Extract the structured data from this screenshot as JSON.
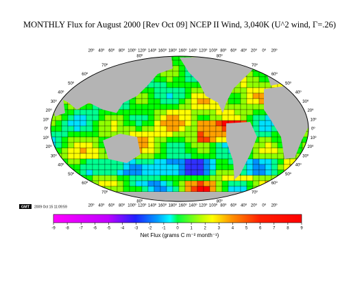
{
  "title": "MONTHLY Flux for August 2000 [Rev Oct 09] NCEP II Wind, 3,040K (U^2 wind, Γ=.26)",
  "map": {
    "top_lon_labels": [
      "20º",
      "40º",
      "60º",
      "80º",
      "100º",
      "120º",
      "140º",
      "160º",
      "180º",
      "160º",
      "140º",
      "120º",
      "100º",
      "80º",
      "60º",
      "40º",
      "20º",
      "0º",
      "20º"
    ],
    "bottom_lon_labels": [
      "20º",
      "40º",
      "60º",
      "80º",
      "100º",
      "120º",
      "140º",
      "160º",
      "180º",
      "160º",
      "140º",
      "120º",
      "100º",
      "80º",
      "60º",
      "40º",
      "20º",
      "0º",
      "20º"
    ],
    "left_lat_labels": [
      "80º",
      "70º",
      "60º",
      "50º",
      "40º",
      "30º",
      "20º",
      "10º",
      "0º",
      "10º",
      "20º",
      "30º",
      "40º",
      "50º",
      "60º",
      "70º",
      "80º"
    ],
    "right_lat_labels": [
      "80º",
      "70º",
      "60º",
      "50º",
      "40º",
      "30º",
      "20º",
      "10º",
      "0º",
      "10º",
      "20º",
      "30º",
      "40º",
      "50º",
      "60º",
      "70º",
      "80º"
    ]
  },
  "colorbar": {
    "ticks": [
      -9,
      -8,
      -7,
      -6,
      -5,
      -4,
      -3,
      -2,
      -1,
      0,
      1,
      2,
      3,
      4,
      5,
      6,
      7,
      8,
      9
    ],
    "label": "Net Flux (grams C m⁻² month⁻¹)"
  },
  "stamp": {
    "logo": "GMT",
    "time": "2009 Oct 15 11:09:59"
  }
}
